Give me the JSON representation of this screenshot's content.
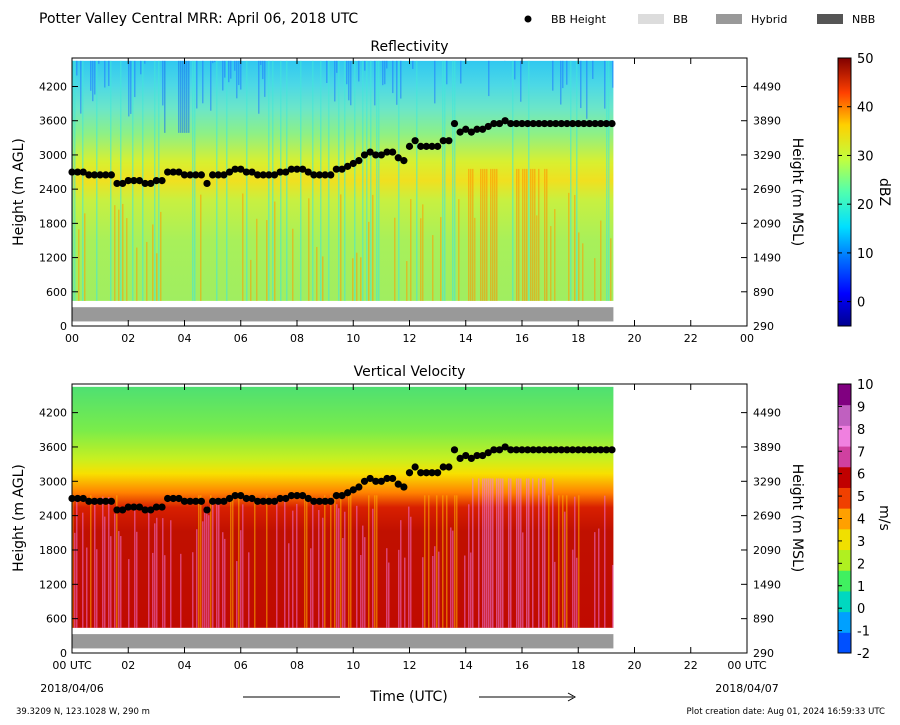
{
  "header": {
    "title": "Potter Valley Central MRR:  April 06, 2018 UTC",
    "legend": [
      {
        "label": "BB Height",
        "symbol": "dot",
        "color": "#000000"
      },
      {
        "label": "BB",
        "symbol": "bar",
        "color": "#dcdcdc"
      },
      {
        "label": "Hybrid",
        "symbol": "bar",
        "color": "#999999"
      },
      {
        "label": "NBB",
        "symbol": "bar",
        "color": "#555555"
      }
    ]
  },
  "footer": {
    "location": "39.3209 N, 123.1028 W, 290 m",
    "creation": "Plot creation date: Aug 01, 2024 16:59:33 UTC",
    "time_label": "Time (UTC)",
    "start_date": "2018/04/06",
    "end_date": "2018/04/07"
  },
  "chart_data": [
    {
      "type": "heatmap",
      "title": "Reflectivity",
      "ylabel": "Height (m AGL)",
      "ylabel_right": "Height (m MSL)",
      "xlabel": "Time (UTC)",
      "xlim": [
        0,
        24
      ],
      "ylim": [
        0,
        4700
      ],
      "x_ticks": [
        "00",
        "02",
        "04",
        "06",
        "08",
        "10",
        "12",
        "14",
        "16",
        "18",
        "20",
        "22",
        "00"
      ],
      "y_ticks_left": [
        "0",
        "600",
        "1200",
        "1800",
        "2400",
        "3000",
        "3600",
        "4200"
      ],
      "y_ticks_right": [
        "290",
        "890",
        "1490",
        "2090",
        "2690",
        "3290",
        "3890",
        "4490"
      ],
      "colorbar": {
        "label": "dBZ",
        "range": [
          -5,
          50
        ],
        "ticks": [
          "0",
          "10",
          "20",
          "30",
          "40",
          "50"
        ],
        "colormap": "jet"
      },
      "data_range_hours": [
        0,
        19.25
      ],
      "data_height_range": [
        440,
        4650
      ],
      "bright_band_hybrid": {
        "start": 0,
        "end": 19.25,
        "bottom": 80,
        "top": 330,
        "color": "#999999"
      },
      "bright_band_height": {
        "x": [
          0.0,
          0.2,
          0.4,
          0.6,
          0.8,
          1.0,
          1.2,
          1.4,
          1.6,
          1.8,
          2.0,
          2.2,
          2.4,
          2.6,
          2.8,
          3.0,
          3.2,
          3.4,
          3.6,
          3.8,
          4.0,
          4.2,
          4.4,
          4.6,
          4.8,
          5.0,
          5.2,
          5.4,
          5.6,
          5.8,
          6.0,
          6.2,
          6.4,
          6.6,
          6.8,
          7.0,
          7.2,
          7.4,
          7.6,
          7.8,
          8.0,
          8.2,
          8.4,
          8.6,
          8.8,
          9.0,
          9.2,
          9.4,
          9.6,
          9.8,
          10.0,
          10.2,
          10.4,
          10.6,
          10.8,
          11.0,
          11.2,
          11.4,
          11.6,
          11.8,
          12.0,
          12.2,
          12.4,
          12.6,
          12.8,
          13.0,
          13.2,
          13.4,
          13.6,
          13.8,
          14.0,
          14.2,
          14.4,
          14.6,
          14.8,
          15.0,
          15.2,
          15.4,
          15.6,
          15.8,
          16.0,
          16.2,
          16.4,
          16.6,
          16.8,
          17.0,
          17.2,
          17.4,
          17.6,
          17.8,
          18.0,
          18.2,
          18.4,
          18.6,
          18.8,
          19.0,
          19.2
        ],
        "y": [
          2700,
          2700,
          2700,
          2650,
          2650,
          2650,
          2650,
          2650,
          2500,
          2500,
          2550,
          2550,
          2550,
          2500,
          2500,
          2550,
          2550,
          2700,
          2700,
          2700,
          2650,
          2650,
          2650,
          2650,
          2500,
          2650,
          2650,
          2650,
          2700,
          2750,
          2750,
          2700,
          2700,
          2650,
          2650,
          2650,
          2650,
          2700,
          2700,
          2750,
          2750,
          2750,
          2700,
          2650,
          2650,
          2650,
          2650,
          2750,
          2750,
          2800,
          2850,
          2900,
          3000,
          3050,
          3000,
          3000,
          3050,
          3050,
          2950,
          2900,
          3150,
          3250,
          3150,
          3150,
          3150,
          3150,
          3250,
          3250,
          3550,
          3400,
          3450,
          3400,
          3450,
          3450,
          3500,
          3550,
          3550,
          3600,
          3550,
          3550,
          3550,
          3550,
          3550,
          3550,
          3550,
          3550,
          3550,
          3550,
          3550,
          3550,
          3550,
          3550,
          3550,
          3550,
          3550,
          3550,
          3550
        ]
      }
    },
    {
      "type": "heatmap",
      "title": "Vertical Velocity",
      "ylabel": "Height (m AGL)",
      "ylabel_right": "Height (m MSL)",
      "xlabel": "Time (UTC)",
      "xlim": [
        0,
        24
      ],
      "ylim": [
        0,
        4700
      ],
      "x_ticks": [
        "00 UTC",
        "02",
        "04",
        "06",
        "08",
        "10",
        "12",
        "14",
        "16",
        "18",
        "20",
        "22",
        "00 UTC"
      ],
      "y_ticks_left": [
        "0",
        "600",
        "1200",
        "1800",
        "2400",
        "3000",
        "3600",
        "4200"
      ],
      "y_ticks_right": [
        "290",
        "890",
        "1490",
        "2090",
        "2690",
        "3290",
        "3890",
        "4490"
      ],
      "colorbar": {
        "label": "m/s",
        "range": [
          -2,
          10
        ],
        "ticks": [
          "-2",
          "-1",
          "0",
          "1",
          "2",
          "3",
          "4",
          "5",
          "6",
          "7",
          "8",
          "9",
          "10"
        ],
        "colors": [
          "#0050ff",
          "#00a0ff",
          "#00d8c0",
          "#40f060",
          "#b0f020",
          "#f0e000",
          "#ffa000",
          "#f04000",
          "#c00000",
          "#d040a0",
          "#f080e0",
          "#c060c0",
          "#800080"
        ]
      },
      "data_range_hours": [
        0,
        19.25
      ],
      "data_height_range": [
        440,
        4650
      ],
      "bright_band_hybrid": {
        "start": 0,
        "end": 19.25,
        "bottom": 80,
        "top": 330,
        "color": "#999999"
      },
      "bright_band_height": {
        "same_as": "Reflectivity"
      }
    }
  ]
}
